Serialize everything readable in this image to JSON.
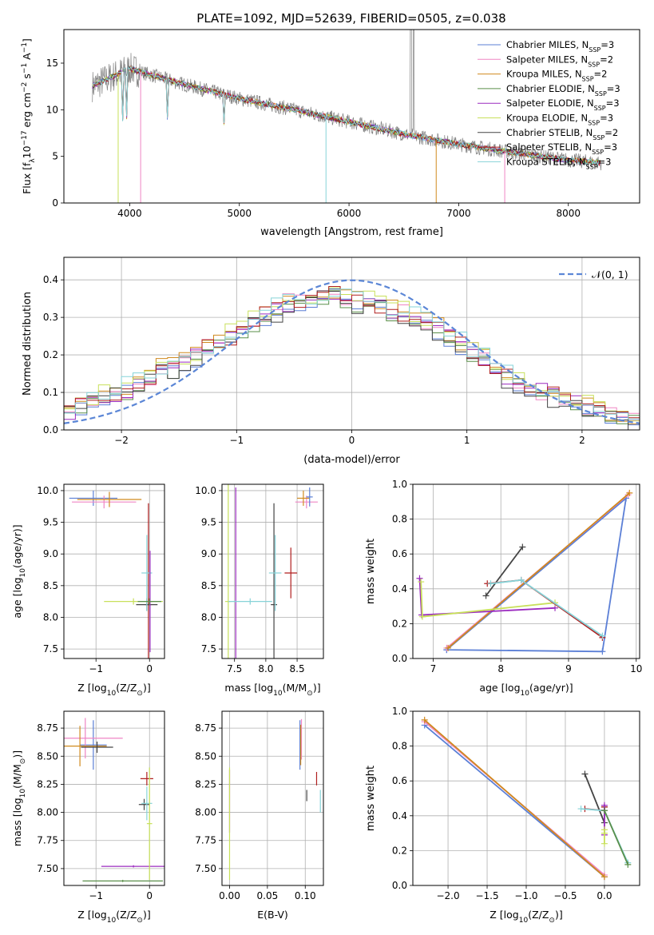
{
  "figure": {
    "title": "PLATE=1092, MJD=52639, FIBERID=0505, z=0.038"
  },
  "series": [
    {
      "name": "Chabrier MILES",
      "nssp": "3",
      "color": "#5b7fd6"
    },
    {
      "name": "Salpeter MILES",
      "nssp": "2",
      "color": "#ef85c4"
    },
    {
      "name": "Kroupa MILES",
      "nssp": "2",
      "color": "#d08a1e"
    },
    {
      "name": "Chabrier ELODIE",
      "nssp": "3",
      "color": "#5a8f4a"
    },
    {
      "name": "Salpeter ELODIE",
      "nssp": "3",
      "color": "#9b2bbf"
    },
    {
      "name": "Kroupa ELODIE",
      "nssp": "3",
      "color": "#c8e05a"
    },
    {
      "name": "Chabrier STELIB",
      "nssp": "2",
      "color": "#444444"
    },
    {
      "name": "Salpeter STELIB",
      "nssp": "3",
      "color": "#b01f1f"
    },
    {
      "name": "Kroupa STELIB",
      "nssp": "3",
      "color": "#86d3d8"
    }
  ],
  "chart_data": [
    {
      "id": "spectrum",
      "type": "line",
      "xlabel": "wavelength [Angstrom, rest frame]",
      "ylabel": "Flux [f",
      "ylabel_parts": [
        "λ",
        "10",
        "−17",
        " erg cm",
        "−2",
        " s",
        "−1",
        " A",
        "−1",
        "]"
      ],
      "xlim": [
        3400,
        8650
      ],
      "ylim": [
        0,
        18.6
      ],
      "xticks": [
        4000,
        5000,
        6000,
        7000,
        8000
      ],
      "yticks": [
        0,
        5,
        10,
        15
      ],
      "grid": false,
      "legend": "top-right",
      "data_series": "observed spectrum (gray) with nine model fits",
      "anchors": {
        "x": [
          3650,
          4000,
          4500,
          5000,
          5500,
          6000,
          6500,
          7000,
          7500,
          8000,
          8300
        ],
        "y": [
          12.5,
          14.4,
          12.7,
          11.2,
          10.0,
          8.7,
          7.4,
          6.3,
          5.4,
          4.6,
          4.3
        ]
      }
    },
    {
      "id": "residuals",
      "type": "line",
      "xlabel": "(data-model)/error",
      "ylabel": "Normed distribution",
      "xlim": [
        -2.5,
        2.5
      ],
      "ylim": [
        0,
        0.46
      ],
      "xticks": [
        -2,
        -1,
        0,
        1,
        2
      ],
      "xticklabels": [
        "−2",
        "−1",
        "0",
        "1",
        "2"
      ],
      "yticks": [
        0.0,
        0.1,
        0.2,
        0.3,
        0.4
      ],
      "grid": true,
      "legend": "top-right",
      "normal_label": "𝒩(0, 1)",
      "bin_edges_start": -2.5,
      "bin_width": 0.1,
      "base_values": [
        0.05,
        0.07,
        0.08,
        0.09,
        0.1,
        0.11,
        0.13,
        0.14,
        0.16,
        0.17,
        0.19,
        0.2,
        0.22,
        0.23,
        0.25,
        0.27,
        0.29,
        0.31,
        0.32,
        0.34,
        0.35,
        0.35,
        0.36,
        0.36,
        0.35,
        0.34,
        0.34,
        0.33,
        0.32,
        0.31,
        0.3,
        0.29,
        0.27,
        0.25,
        0.23,
        0.21,
        0.19,
        0.16,
        0.14,
        0.12,
        0.11,
        0.1,
        0.09,
        0.08,
        0.07,
        0.06,
        0.05,
        0.04,
        0.035,
        0.03
      ]
    },
    {
      "id": "age-vs-Z",
      "type": "scatter",
      "xlabel": "Z [log",
      "xlabel_parts": [
        "10",
        "(Z/Z",
        "⊙",
        ")]"
      ],
      "ylabel": "age  [log",
      "ylabel_parts": [
        "10",
        "(age/yr)]"
      ],
      "xlim": [
        -1.6,
        0.28
      ],
      "ylim": [
        7.35,
        10.1
      ],
      "xticks": [
        -1,
        0
      ],
      "xticklabels": [
        "−1",
        "0"
      ],
      "yticks": [
        7.5,
        8.0,
        8.5,
        9.0,
        9.5,
        10.0
      ],
      "grid": true,
      "points": [
        {
          "s": 0,
          "x": -1.05,
          "y": 9.88,
          "xerr": 0.45,
          "yerr": 0.12
        },
        {
          "s": 1,
          "x": -0.85,
          "y": 9.82,
          "xerr": 0.6,
          "yerr": 0.1
        },
        {
          "s": 2,
          "x": -0.75,
          "y": 9.86,
          "xerr": 0.6,
          "yerr": 0.12
        },
        {
          "s": 7,
          "x": -0.02,
          "y": 8.2,
          "xerr": 0.05,
          "yerr": 1.6
        },
        {
          "s": 6,
          "x": -0.05,
          "y": 8.2,
          "xerr": 0.2,
          "yerr": 0.1
        },
        {
          "s": 8,
          "x": -0.05,
          "y": 8.7,
          "xerr": 0.1,
          "yerr": 0.6
        },
        {
          "s": 4,
          "x": 0.01,
          "y": 8.25,
          "xerr": 0.05,
          "yerr": 0.8
        },
        {
          "s": 5,
          "x": -0.3,
          "y": 8.25,
          "xerr": 0.55,
          "yerr": 0.05
        },
        {
          "s": 3,
          "x": 0.0,
          "y": 8.25,
          "xerr": 0.22,
          "yerr": 0.05
        }
      ]
    },
    {
      "id": "age-vs-mass",
      "type": "scatter",
      "xlabel": "mass [log",
      "xlabel_parts": [
        "10",
        "(M/M",
        "⊙",
        ")]"
      ],
      "xlim": [
        7.3,
        8.92
      ],
      "ylim": [
        7.35,
        10.1
      ],
      "xticks": [
        7.5,
        8.0,
        8.5
      ],
      "xticklabels": [
        "7.5",
        "8.0",
        "8.5"
      ],
      "yticks": [
        7.5,
        8.0,
        8.5,
        9.0,
        9.5,
        10.0
      ],
      "grid": true,
      "points": [
        {
          "s": 5,
          "x": 7.4,
          "y": 8.25,
          "xerr": 0.05,
          "yerr": 1.85
        },
        {
          "s": 4,
          "x": 7.52,
          "y": 8.25,
          "xerr": 0.0,
          "yerr": 1.8
        },
        {
          "s": 8,
          "x": 7.75,
          "y": 8.25,
          "xerr": 0.35,
          "yerr": 0.05
        },
        {
          "s": 6,
          "x": 8.13,
          "y": 8.2,
          "xerr": 0.05,
          "yerr": 1.6
        },
        {
          "s": 8,
          "x": 8.15,
          "y": 8.7,
          "xerr": 0.1,
          "yerr": 0.6
        },
        {
          "s": 7,
          "x": 8.4,
          "y": 8.7,
          "xerr": 0.1,
          "yerr": 0.4
        },
        {
          "s": 1,
          "x": 8.65,
          "y": 9.82,
          "xerr": 0.18,
          "yerr": 0.1
        },
        {
          "s": 2,
          "x": 8.6,
          "y": 9.88,
          "xerr": 0.1,
          "yerr": 0.12
        },
        {
          "s": 0,
          "x": 8.7,
          "y": 9.9,
          "xerr": 0.05,
          "yerr": 0.15
        }
      ]
    },
    {
      "id": "weight-vs-age",
      "type": "line",
      "xlabel": "age  [log",
      "xlabel_parts": [
        "10",
        "(age/yr)]"
      ],
      "ylabel": "mass weight",
      "xlim": [
        6.7,
        10.05
      ],
      "ylim": [
        0,
        1
      ],
      "xticks": [
        7,
        8,
        9,
        10
      ],
      "yticks": [
        0.0,
        0.2,
        0.4,
        0.6,
        0.8,
        1.0
      ],
      "grid": true,
      "lines": [
        {
          "s": 0,
          "x": [
            7.2,
            9.5,
            9.85,
            7.2
          ],
          "y": [
            0.05,
            0.04,
            0.92,
            0.05
          ]
        },
        {
          "s": 1,
          "x": [
            7.2,
            9.88
          ],
          "y": [
            0.06,
            0.94
          ]
        },
        {
          "s": 2,
          "x": [
            7.22,
            9.9
          ],
          "y": [
            0.06,
            0.95
          ]
        },
        {
          "s": 4,
          "x": [
            6.8,
            6.83,
            8.8
          ],
          "y": [
            0.46,
            0.25,
            0.29
          ]
        },
        {
          "s": 5,
          "x": [
            6.82,
            6.84,
            8.8
          ],
          "y": [
            0.44,
            0.24,
            0.32
          ]
        },
        {
          "s": 6,
          "x": [
            7.78,
            8.32
          ],
          "y": [
            0.36,
            0.64
          ]
        },
        {
          "s": 7,
          "x": [
            7.8,
            8.3,
            9.5
          ],
          "y": [
            0.43,
            0.45,
            0.12
          ]
        },
        {
          "s": 8,
          "x": [
            7.85,
            8.3,
            9.5
          ],
          "y": [
            0.43,
            0.45,
            0.13
          ]
        }
      ]
    },
    {
      "id": "mass-vs-Z",
      "type": "scatter",
      "xlabel": "Z [log",
      "xlabel_parts": [
        "10",
        "(Z/Z",
        "⊙",
        ")]"
      ],
      "ylabel": "mass [log",
      "ylabel_parts": [
        "10",
        "(M/M",
        "⊙",
        ")]"
      ],
      "xlim": [
        -1.6,
        0.28
      ],
      "ylim": [
        7.35,
        8.9
      ],
      "xticks": [
        -1,
        0
      ],
      "xticklabels": [
        "−1",
        "0"
      ],
      "yticks": [
        7.5,
        7.75,
        8.0,
        8.25,
        8.5,
        8.75
      ],
      "grid": true,
      "points": [
        {
          "s": 0,
          "x": -1.05,
          "y": 8.6,
          "xerr": 0.25,
          "yerr": 0.22
        },
        {
          "s": 1,
          "x": -1.2,
          "y": 8.66,
          "xerr": 0.7,
          "yerr": 0.18
        },
        {
          "s": 2,
          "x": -1.3,
          "y": 8.59,
          "xerr": 0.5,
          "yerr": 0.18
        },
        {
          "s": 6,
          "x": -0.98,
          "y": 8.58,
          "xerr": 0.3,
          "yerr": 0.05
        },
        {
          "s": 7,
          "x": -0.05,
          "y": 8.3,
          "xerr": 0.12,
          "yerr": 0.06
        },
        {
          "s": 6,
          "x": -0.1,
          "y": 8.07,
          "xerr": 0.1,
          "yerr": 0.05
        },
        {
          "s": 8,
          "x": -0.05,
          "y": 8.08,
          "xerr": 0.1,
          "yerr": 0.15
        },
        {
          "s": 4,
          "x": -0.3,
          "y": 7.52,
          "xerr": 0.6,
          "yerr": 0.01
        },
        {
          "s": 3,
          "x": -0.5,
          "y": 7.39,
          "xerr": 0.75,
          "yerr": 0.01
        },
        {
          "s": 5,
          "x": 0.0,
          "y": 7.9,
          "xerr": 0.05,
          "yerr": 0.5
        }
      ]
    },
    {
      "id": "mass-vs-EBV",
      "type": "scatter",
      "xlabel": "E(B-V)",
      "xlim": [
        -0.01,
        0.124
      ],
      "ylim": [
        7.35,
        8.9
      ],
      "xticks": [
        0.0,
        0.05,
        0.1
      ],
      "xticklabels": [
        "0.00",
        "0.05",
        "0.10"
      ],
      "yticks": [
        7.5,
        7.75,
        8.0,
        8.25,
        8.5,
        8.75
      ],
      "grid": true,
      "points": [
        {
          "s": 4,
          "x": 0.0,
          "y": 8.1,
          "xerr": 0,
          "yerr": 0.28
        },
        {
          "s": 5,
          "x": 0.0,
          "y": 7.9,
          "xerr": 0,
          "yerr": 0.5
        },
        {
          "s": 0,
          "x": 0.093,
          "y": 8.6,
          "xerr": 0,
          "yerr": 0.22
        },
        {
          "s": 1,
          "x": 0.095,
          "y": 8.65,
          "xerr": 0,
          "yerr": 0.18
        },
        {
          "s": 2,
          "x": 0.094,
          "y": 8.6,
          "xerr": 0,
          "yerr": 0.18
        },
        {
          "s": 6,
          "x": 0.102,
          "y": 8.15,
          "xerr": 0,
          "yerr": 0.05
        },
        {
          "s": 7,
          "x": 0.115,
          "y": 8.3,
          "xerr": 0,
          "yerr": 0.06
        },
        {
          "s": 8,
          "x": 0.12,
          "y": 8.1,
          "xerr": 0,
          "yerr": 0.1
        }
      ]
    },
    {
      "id": "weight-vs-Z",
      "type": "line",
      "xlabel": "Z [log",
      "xlabel_parts": [
        "10",
        "(Z/Z",
        "⊙",
        ")]"
      ],
      "ylabel": "mass weight",
      "xlim": [
        -2.45,
        0.45
      ],
      "ylim": [
        0,
        1
      ],
      "xticks": [
        -2.0,
        -1.5,
        -1.0,
        -0.5,
        0.0
      ],
      "xticklabels": [
        "−2.0",
        "−1.5",
        "−1.0",
        "−0.5",
        "0.0"
      ],
      "yticks": [
        0.0,
        0.2,
        0.4,
        0.6,
        0.8,
        1.0
      ],
      "grid": true,
      "lines": [
        {
          "s": 0,
          "x": [
            -2.3,
            0.0
          ],
          "y": [
            0.92,
            0.05
          ]
        },
        {
          "s": 1,
          "x": [
            -2.3,
            0.0
          ],
          "y": [
            0.94,
            0.06
          ]
        },
        {
          "s": 2,
          "x": [
            -2.3,
            0.0
          ],
          "y": [
            0.95,
            0.05
          ]
        },
        {
          "s": 6,
          "x": [
            -0.25,
            0.0,
            0.0
          ],
          "y": [
            0.64,
            0.36,
            0.45
          ]
        },
        {
          "s": 7,
          "x": [
            -0.25,
            0.0,
            0.0
          ],
          "y": [
            0.44,
            0.43,
            0.45
          ]
        },
        {
          "s": 8,
          "x": [
            -0.3,
            0.0,
            0.3
          ],
          "y": [
            0.44,
            0.43,
            0.13
          ]
        },
        {
          "s": 4,
          "x": [
            0.0,
            0.0
          ],
          "y": [
            0.46,
            0.29
          ]
        },
        {
          "s": 5,
          "x": [
            0.0,
            0.0,
            0.0
          ],
          "y": [
            0.24,
            0.32,
            0.3
          ]
        },
        {
          "s": 3,
          "x": [
            0.3,
            0.0
          ],
          "y": [
            0.12,
            0.43
          ]
        }
      ]
    }
  ]
}
